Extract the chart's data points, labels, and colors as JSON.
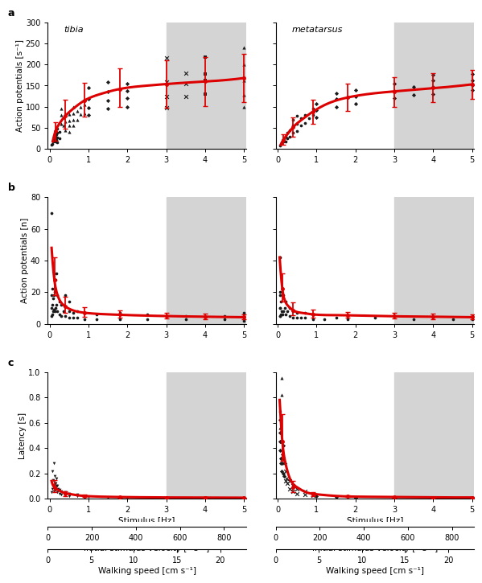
{
  "panel_labels": [
    "a",
    "b",
    "c"
  ],
  "col_labels": [
    "tibia",
    "metatarsus"
  ],
  "gray_start": 3.0,
  "gray_end": 5.05,
  "gray_color": "#d4d4d4",
  "ax_row0_col0": {
    "ylabel": "Action potentials [s⁻¹]",
    "ylim": [
      0,
      300
    ],
    "yticks": [
      0,
      50,
      100,
      150,
      200,
      250,
      300
    ],
    "xlim": [
      -0.05,
      5.05
    ],
    "xticks": [
      0,
      1,
      2,
      3,
      4,
      5
    ],
    "curve_x": [
      0.08,
      0.15,
      0.25,
      0.4,
      0.6,
      0.9,
      1.3,
      1.8,
      2.5,
      3.5,
      4.5,
      5.0
    ],
    "curve_y": [
      18,
      42,
      60,
      78,
      95,
      115,
      130,
      142,
      150,
      157,
      163,
      168
    ],
    "errbar_x": [
      0.15,
      0.4,
      0.9,
      1.8,
      3.0,
      4.0,
      5.0
    ],
    "errbar_y": [
      42,
      78,
      115,
      142,
      152,
      160,
      168
    ],
    "errbar_lo": [
      22,
      30,
      38,
      42,
      55,
      58,
      58
    ],
    "errbar_hi": [
      22,
      38,
      42,
      48,
      58,
      58,
      58
    ],
    "scatter_x": [
      0.05,
      0.07,
      0.09,
      0.09,
      0.11,
      0.13,
      0.13,
      0.15,
      0.15,
      0.17,
      0.17,
      0.2,
      0.2,
      0.2,
      0.2,
      0.25,
      0.25,
      0.3,
      0.3,
      0.3,
      0.35,
      0.35,
      0.4,
      0.4,
      0.4,
      0.5,
      0.5,
      0.5,
      0.5,
      0.6,
      0.6,
      0.6,
      0.6,
      0.7,
      0.7,
      0.8,
      0.8,
      0.9,
      0.9,
      1.0,
      1.0,
      1.0,
      1.0,
      1.5,
      1.5,
      1.5,
      1.5,
      2.0,
      2.0,
      2.0,
      2.0,
      3.0,
      3.0,
      3.0,
      3.0,
      3.5,
      3.5,
      3.5,
      4.0,
      4.0,
      4.0,
      4.0,
      5.0,
      5.0,
      5.0,
      5.0,
      5.0
    ],
    "scatter_y": [
      10,
      12,
      18,
      22,
      20,
      25,
      30,
      18,
      32,
      22,
      35,
      15,
      28,
      38,
      48,
      25,
      40,
      60,
      80,
      95,
      55,
      75,
      45,
      65,
      85,
      40,
      55,
      68,
      82,
      55,
      70,
      85,
      100,
      70,
      90,
      82,
      100,
      85,
      105,
      80,
      98,
      118,
      145,
      95,
      115,
      135,
      158,
      100,
      120,
      138,
      155,
      98,
      125,
      158,
      215,
      125,
      155,
      180,
      130,
      162,
      178,
      218,
      100,
      128,
      162,
      200,
      240
    ],
    "scatter_markers": [
      "o",
      "o",
      "o",
      "o",
      "o",
      "o",
      "o",
      "o",
      "o",
      "o",
      "o",
      "o",
      "o",
      "o",
      "o",
      "o",
      "o",
      "^",
      "^",
      "^",
      "^",
      "^",
      "^",
      "^",
      "^",
      "^",
      "^",
      "^",
      "^",
      "^",
      "^",
      "^",
      "^",
      "^",
      "^",
      "^",
      "^",
      "^",
      "^",
      "D",
      "D",
      "D",
      "D",
      "D",
      "D",
      "D",
      "D",
      "D",
      "D",
      "D",
      "D",
      "x",
      "x",
      "x",
      "x",
      "x",
      "x",
      "x",
      "s",
      "s",
      "s",
      "s",
      "^",
      "^",
      "^",
      "^",
      "^"
    ]
  },
  "ax_row0_col1": {
    "ylabel": "",
    "ylim": [
      0,
      300
    ],
    "yticks": [
      0,
      50,
      100,
      150,
      200,
      250,
      300
    ],
    "xlim": [
      -0.05,
      5.05
    ],
    "xticks": [
      0,
      1,
      2,
      3,
      4,
      5
    ],
    "curve_x": [
      0.08,
      0.15,
      0.25,
      0.4,
      0.6,
      0.9,
      1.3,
      1.8,
      2.5,
      3.5,
      4.5,
      5.0
    ],
    "curve_y": [
      10,
      22,
      35,
      52,
      68,
      88,
      108,
      122,
      132,
      140,
      148,
      153
    ],
    "errbar_x": [
      0.15,
      0.4,
      0.9,
      1.8,
      3.0,
      4.0,
      5.0
    ],
    "errbar_y": [
      22,
      52,
      88,
      122,
      135,
      145,
      153
    ],
    "errbar_lo": [
      12,
      22,
      28,
      32,
      35,
      35,
      35
    ],
    "errbar_hi": [
      12,
      22,
      28,
      32,
      35,
      35,
      35
    ],
    "scatter_x": [
      0.07,
      0.09,
      0.11,
      0.13,
      0.15,
      0.17,
      0.2,
      0.2,
      0.25,
      0.25,
      0.3,
      0.3,
      0.4,
      0.4,
      0.4,
      0.5,
      0.5,
      0.5,
      0.6,
      0.6,
      0.7,
      0.7,
      0.8,
      0.9,
      0.9,
      1.0,
      1.0,
      1.0,
      1.5,
      1.5,
      1.5,
      2.0,
      2.0,
      2.0,
      3.0,
      3.0,
      3.0,
      3.5,
      3.5,
      4.0,
      4.0,
      4.0,
      4.0,
      5.0,
      5.0,
      5.0,
      5.0
    ],
    "scatter_y": [
      8,
      12,
      15,
      20,
      18,
      25,
      18,
      30,
      25,
      38,
      30,
      45,
      38,
      55,
      70,
      42,
      60,
      78,
      55,
      72,
      62,
      80,
      72,
      80,
      95,
      75,
      92,
      108,
      100,
      118,
      132,
      108,
      125,
      140,
      120,
      138,
      155,
      128,
      148,
      130,
      148,
      162,
      175,
      140,
      150,
      163,
      178
    ],
    "scatter_markers": [
      "o",
      "o",
      "o",
      "o",
      "o",
      "o",
      "o",
      "o",
      "o",
      "o",
      "o",
      "o",
      "o",
      "o",
      "o",
      "o",
      "o",
      "o",
      "o",
      "o",
      "o",
      "o",
      "o",
      "o",
      "o",
      "D",
      "D",
      "D",
      "D",
      "D",
      "D",
      "D",
      "D",
      "D",
      "D",
      "D",
      "D",
      "D",
      "D",
      "D",
      "D",
      "D",
      "D",
      "D",
      "D",
      "D",
      "D"
    ]
  },
  "ax_row1_col0": {
    "ylabel": "Action potentials [n]",
    "ylim": [
      0,
      80
    ],
    "yticks": [
      0,
      20,
      40,
      60,
      80
    ],
    "xlim": [
      -0.05,
      5.05
    ],
    "xticks": [
      0,
      1,
      2,
      3,
      4,
      5
    ],
    "curve_x": [
      0.05,
      0.08,
      0.12,
      0.18,
      0.28,
      0.4,
      0.6,
      0.9,
      1.5,
      2.5,
      4.0,
      5.0
    ],
    "curve_y": [
      48,
      38,
      28,
      20,
      14,
      11,
      8.5,
      7.0,
      6.0,
      5.2,
      4.5,
      4.2
    ],
    "errbar_x": [
      0.12,
      0.4,
      0.9,
      1.8,
      3.0,
      4.0,
      5.0
    ],
    "errbar_y": [
      28,
      11,
      7.0,
      6.0,
      5.0,
      4.5,
      4.2
    ],
    "errbar_lo": [
      10,
      4,
      2.5,
      2,
      1.8,
      1.5,
      1.5
    ],
    "errbar_hi": [
      14,
      6,
      3.5,
      2.5,
      2.2,
      2.0,
      2.0
    ],
    "scatter_x": [
      0.05,
      0.05,
      0.05,
      0.05,
      0.07,
      0.07,
      0.07,
      0.09,
      0.09,
      0.11,
      0.11,
      0.12,
      0.12,
      0.15,
      0.15,
      0.18,
      0.18,
      0.2,
      0.2,
      0.25,
      0.25,
      0.3,
      0.3,
      0.35,
      0.4,
      0.4,
      0.5,
      0.5,
      0.5,
      0.6,
      0.6,
      0.7,
      0.7,
      0.9,
      0.9,
      1.2,
      1.2,
      1.8,
      1.8,
      2.5,
      2.5,
      3.5,
      3.5,
      4.5,
      4.5,
      5.0,
      5.0,
      5.0
    ],
    "scatter_y": [
      5,
      10,
      18,
      70,
      6,
      12,
      22,
      8,
      16,
      9,
      18,
      8,
      20,
      10,
      28,
      12,
      32,
      8,
      18,
      6,
      14,
      5,
      12,
      8,
      5,
      18,
      4,
      8,
      14,
      4,
      7,
      4,
      8,
      3,
      7,
      3,
      6,
      3,
      7,
      3,
      6,
      3,
      5,
      3,
      5,
      2,
      4,
      7
    ],
    "scatter_markers": [
      "o",
      "o",
      "o",
      "o",
      "o",
      "o",
      "o",
      "o",
      "o",
      "o",
      "o",
      "o",
      "o",
      "o",
      "o",
      "o",
      "o",
      "o",
      "o",
      "o",
      "o",
      "o",
      "o",
      "o",
      "o",
      "o",
      "o",
      "o",
      "o",
      "o",
      "o",
      "o",
      "o",
      "o",
      "o",
      "o",
      "o",
      "o",
      "o",
      "o",
      "o",
      "o",
      "o",
      "o",
      "o",
      "o",
      "o",
      "o"
    ]
  },
  "ax_row1_col1": {
    "ylabel": "",
    "ylim": [
      0,
      80
    ],
    "yticks": [
      0,
      20,
      40,
      60,
      80
    ],
    "xlim": [
      -0.05,
      5.05
    ],
    "xticks": [
      0,
      1,
      2,
      3,
      4,
      5
    ],
    "curve_x": [
      0.05,
      0.08,
      0.12,
      0.18,
      0.28,
      0.4,
      0.6,
      0.9,
      1.5,
      2.5,
      4.0,
      5.0
    ],
    "curve_y": [
      42,
      32,
      22,
      15,
      11,
      8.5,
      7.0,
      6.0,
      5.5,
      5.0,
      4.5,
      4.2
    ],
    "errbar_x": [
      0.12,
      0.4,
      0.9,
      1.8,
      3.0,
      4.0,
      5.0
    ],
    "errbar_y": [
      22,
      8.5,
      6.0,
      5.5,
      5.0,
      4.5,
      4.2
    ],
    "errbar_lo": [
      8,
      3,
      2,
      1.8,
      1.8,
      1.5,
      1.5
    ],
    "errbar_hi": [
      10,
      5,
      3,
      2.2,
      2.2,
      2.0,
      2.0
    ],
    "scatter_x": [
      0.05,
      0.05,
      0.05,
      0.05,
      0.07,
      0.07,
      0.07,
      0.09,
      0.09,
      0.11,
      0.12,
      0.15,
      0.15,
      0.18,
      0.2,
      0.2,
      0.25,
      0.3,
      0.3,
      0.4,
      0.4,
      0.5,
      0.5,
      0.6,
      0.7,
      0.7,
      0.9,
      0.9,
      1.2,
      1.5,
      1.8,
      2.5,
      3.5,
      4.5,
      5.0,
      5.0
    ],
    "scatter_y": [
      5,
      10,
      18,
      42,
      5,
      10,
      20,
      6,
      14,
      8,
      6,
      8,
      18,
      10,
      6,
      14,
      8,
      5,
      10,
      4,
      8,
      4,
      7,
      4,
      4,
      7,
      3,
      6,
      3,
      4,
      3,
      4,
      3,
      3,
      3,
      5
    ],
    "scatter_markers": [
      "o",
      "o",
      "o",
      "o",
      "o",
      "o",
      "o",
      "o",
      "o",
      "o",
      "o",
      "o",
      "o",
      "o",
      "o",
      "o",
      "o",
      "o",
      "o",
      "o",
      "o",
      "o",
      "o",
      "o",
      "o",
      "o",
      "o",
      "o",
      "o",
      "o",
      "o",
      "o",
      "o",
      "o",
      "o",
      "o"
    ]
  },
  "ax_row2_col0": {
    "ylabel": "Latency [s]",
    "ylim": [
      0,
      1.0
    ],
    "yticks": [
      0.0,
      0.2,
      0.4,
      0.6,
      0.8,
      1.0
    ],
    "xlim": [
      -0.05,
      5.05
    ],
    "xticks": [
      0,
      1,
      2,
      3,
      4,
      5
    ],
    "xlabel": "Stimulus [Hz]",
    "curve_x": [
      0.05,
      0.08,
      0.12,
      0.2,
      0.3,
      0.5,
      0.7,
      1.0,
      1.5,
      2.5,
      4.0,
      5.0
    ],
    "curve_y": [
      0.14,
      0.11,
      0.09,
      0.072,
      0.055,
      0.038,
      0.028,
      0.02,
      0.015,
      0.011,
      0.009,
      0.008
    ],
    "errbar_x": [
      0.12,
      0.4,
      0.9,
      1.8,
      3.0,
      4.0,
      5.0
    ],
    "errbar_y": [
      0.09,
      0.038,
      0.02,
      0.012,
      0.009,
      0.008,
      0.007
    ],
    "errbar_lo": [
      0.04,
      0.015,
      0.007,
      0.004,
      0.003,
      0.003,
      0.002
    ],
    "errbar_hi": [
      0.06,
      0.02,
      0.01,
      0.005,
      0.003,
      0.003,
      0.002
    ],
    "scatter_x": [
      0.05,
      0.06,
      0.07,
      0.08,
      0.09,
      0.1,
      0.11,
      0.12,
      0.13,
      0.14,
      0.15,
      0.15,
      0.17,
      0.18,
      0.2,
      0.2,
      0.22,
      0.25,
      0.25,
      0.3,
      0.3,
      0.4,
      0.4,
      0.5,
      0.5,
      0.7,
      0.7,
      0.9,
      1.0,
      1.5,
      2.0,
      3.0,
      4.0,
      5.0
    ],
    "scatter_y": [
      0.05,
      0.08,
      0.22,
      0.1,
      0.15,
      0.06,
      0.28,
      0.08,
      0.12,
      0.18,
      0.07,
      0.12,
      0.1,
      0.16,
      0.05,
      0.1,
      0.08,
      0.04,
      0.07,
      0.03,
      0.06,
      0.025,
      0.05,
      0.02,
      0.04,
      0.018,
      0.032,
      0.015,
      0.012,
      0.01,
      0.008,
      0.007,
      0.006,
      0.006
    ],
    "scatter_markers": [
      "v",
      "v",
      "v",
      "v",
      "v",
      "v",
      "v",
      "v",
      "v",
      "v",
      "v",
      "v",
      "v",
      "v",
      "v",
      "v",
      "v",
      "v",
      "v",
      "v",
      "v",
      "v",
      "v",
      "v",
      "v",
      "v",
      "v",
      "v",
      "v",
      "v",
      "v",
      "v",
      "v",
      "v"
    ]
  },
  "ax_row2_col1": {
    "ylabel": "",
    "ylim": [
      0,
      1.0
    ],
    "yticks": [
      0.0,
      0.2,
      0.4,
      0.6,
      0.8,
      1.0
    ],
    "xlim": [
      -0.05,
      5.05
    ],
    "xticks": [
      0,
      1,
      2,
      3,
      4,
      5
    ],
    "xlabel": "Stimulus [Hz]",
    "curve_x": [
      0.05,
      0.08,
      0.12,
      0.2,
      0.3,
      0.5,
      0.7,
      1.0,
      1.5,
      2.5,
      4.0,
      5.0
    ],
    "curve_y": [
      0.78,
      0.62,
      0.45,
      0.28,
      0.17,
      0.09,
      0.055,
      0.035,
      0.022,
      0.015,
      0.011,
      0.01
    ],
    "errbar_x": [
      0.12,
      0.4,
      0.9,
      1.8,
      3.0,
      4.0,
      5.0
    ],
    "errbar_y": [
      0.45,
      0.09,
      0.035,
      0.018,
      0.012,
      0.01,
      0.009
    ],
    "errbar_lo": [
      0.15,
      0.035,
      0.012,
      0.006,
      0.004,
      0.003,
      0.003
    ],
    "errbar_hi": [
      0.22,
      0.05,
      0.018,
      0.008,
      0.005,
      0.003,
      0.003
    ],
    "scatter_x": [
      0.05,
      0.05,
      0.06,
      0.06,
      0.07,
      0.07,
      0.08,
      0.08,
      0.09,
      0.1,
      0.1,
      0.11,
      0.12,
      0.13,
      0.14,
      0.15,
      0.15,
      0.17,
      0.18,
      0.2,
      0.2,
      0.22,
      0.25,
      0.3,
      0.3,
      0.4,
      0.4,
      0.5,
      0.5,
      0.7,
      0.7,
      0.9,
      1.0,
      1.5,
      2.0,
      3.0,
      4.0,
      5.0
    ],
    "scatter_y": [
      0.56,
      0.7,
      0.45,
      0.62,
      0.38,
      0.52,
      0.32,
      0.45,
      0.28,
      0.82,
      0.95,
      0.22,
      0.35,
      0.28,
      0.42,
      0.2,
      0.32,
      0.18,
      0.28,
      0.14,
      0.22,
      0.16,
      0.12,
      0.08,
      0.14,
      0.06,
      0.1,
      0.04,
      0.08,
      0.03,
      0.06,
      0.025,
      0.018,
      0.015,
      0.01,
      0.01,
      0.008,
      0.01
    ],
    "scatter_markers": [
      "^",
      "^",
      "D",
      "D",
      "D",
      "D",
      "D",
      "D",
      "D",
      "^",
      "^",
      "D",
      "D",
      "D",
      "D",
      "D",
      "D",
      "D",
      "D",
      "x",
      "x",
      "x",
      "x",
      "x",
      "x",
      "x",
      "x",
      "x",
      "x",
      "x",
      "x",
      "x",
      "D",
      "D",
      "D",
      "D",
      "D",
      "D"
    ]
  },
  "secondary_axes": {
    "vel_ticks": [
      0,
      200,
      400,
      600,
      800
    ],
    "vel_label": "Initial stimulus velocity [° s⁻¹]",
    "walk_ticks": [
      0,
      5,
      10,
      15,
      20
    ],
    "walk_label": "Walking speed [cm s⁻¹]",
    "vel_xlim": [
      0,
      900
    ],
    "walk_xlim": [
      0,
      23
    ]
  },
  "red_color": "#dd0000",
  "scatter_color": "#1a1a1a",
  "scatter_size": 7,
  "line_width": 2.2,
  "error_capsize": 2.0,
  "error_elinewidth": 1.3,
  "font_size_label": 7.5,
  "font_size_tick": 7,
  "font_size_panel": 9
}
